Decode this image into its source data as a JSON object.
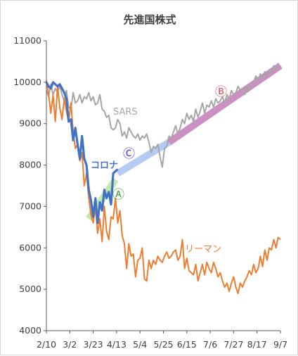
{
  "chart_data": {
    "type": "line",
    "title": "先進国株式",
    "xlabel": "",
    "ylabel": "",
    "ylim": [
      4000,
      11000
    ],
    "yticks": [
      4000,
      5000,
      6000,
      7000,
      8000,
      9000,
      10000,
      11000
    ],
    "x_ticks": [
      {
        "label": "2/10",
        "day": 0
      },
      {
        "label": "3/2",
        "day": 21
      },
      {
        "label": "3/23",
        "day": 42
      },
      {
        "label": "4/13",
        "day": 63
      },
      {
        "label": "5/4",
        "day": 84
      },
      {
        "label": "5/25",
        "day": 105
      },
      {
        "label": "6/15",
        "day": 126
      },
      {
        "label": "7/6",
        "day": 147
      },
      {
        "label": "7/27",
        "day": 168
      },
      {
        "label": "8/17",
        "day": 189
      },
      {
        "label": "9/7",
        "day": 210
      }
    ],
    "grid": false,
    "series": [
      {
        "name": "SARS",
        "color": "#a6a6a6",
        "points": [
          [
            0,
            9800
          ],
          [
            2,
            9650
          ],
          [
            4,
            9950
          ],
          [
            6,
            9700
          ],
          [
            8,
            9850
          ],
          [
            10,
            9750
          ],
          [
            12,
            9920
          ],
          [
            14,
            9700
          ],
          [
            16,
            9550
          ],
          [
            18,
            9800
          ],
          [
            20,
            9400
          ],
          [
            22,
            9350
          ],
          [
            24,
            9750
          ],
          [
            26,
            9500
          ],
          [
            28,
            9550
          ],
          [
            30,
            9700
          ],
          [
            32,
            9500
          ],
          [
            34,
            9650
          ],
          [
            36,
            9600
          ],
          [
            38,
            9750
          ],
          [
            40,
            9550
          ],
          [
            42,
            9650
          ],
          [
            44,
            9450
          ],
          [
            46,
            9500
          ],
          [
            48,
            9700
          ],
          [
            50,
            9350
          ],
          [
            52,
            9300
          ],
          [
            54,
            9150
          ],
          [
            56,
            9200
          ],
          [
            58,
            8900
          ],
          [
            60,
            8850
          ],
          [
            62,
            8900
          ],
          [
            64,
            9100
          ],
          [
            66,
            9000
          ],
          [
            68,
            8700
          ],
          [
            70,
            8800
          ],
          [
            72,
            8650
          ],
          [
            74,
            8900
          ],
          [
            76,
            8800
          ],
          [
            78,
            8700
          ],
          [
            80,
            8650
          ],
          [
            82,
            8750
          ],
          [
            84,
            8600
          ],
          [
            86,
            8700
          ],
          [
            88,
            8650
          ],
          [
            90,
            8750
          ],
          [
            92,
            8550
          ],
          [
            94,
            8300
          ],
          [
            96,
            8450
          ],
          [
            98,
            8400
          ],
          [
            100,
            8500
          ],
          [
            102,
            8200
          ],
          [
            104,
            7950
          ],
          [
            106,
            8400
          ],
          [
            108,
            8450
          ],
          [
            110,
            8700
          ],
          [
            112,
            8650
          ],
          [
            114,
            8800
          ],
          [
            116,
            8950
          ],
          [
            118,
            8750
          ],
          [
            120,
            8900
          ],
          [
            122,
            9100
          ],
          [
            124,
            9000
          ],
          [
            126,
            9250
          ],
          [
            128,
            9100
          ],
          [
            130,
            9200
          ],
          [
            132,
            9050
          ],
          [
            134,
            9350
          ],
          [
            136,
            9150
          ],
          [
            138,
            9300
          ],
          [
            140,
            9500
          ],
          [
            142,
            9250
          ],
          [
            144,
            9450
          ],
          [
            146,
            9400
          ],
          [
            148,
            9550
          ],
          [
            150,
            9400
          ],
          [
            152,
            9600
          ],
          [
            154,
            9500
          ],
          [
            156,
            9550
          ],
          [
            158,
            9650
          ],
          [
            160,
            9500
          ],
          [
            162,
            9700
          ],
          [
            164,
            9600
          ],
          [
            166,
            9800
          ],
          [
            168,
            9700
          ],
          [
            170,
            9750
          ],
          [
            172,
            9900
          ],
          [
            174,
            9800
          ],
          [
            176,
            9850
          ],
          [
            178,
            9700
          ],
          [
            180,
            9900
          ],
          [
            182,
            9800
          ],
          [
            184,
            9950
          ],
          [
            186,
            10000
          ],
          [
            188,
            10150
          ],
          [
            190,
            10050
          ],
          [
            192,
            10200
          ],
          [
            194,
            10100
          ],
          [
            196,
            10250
          ],
          [
            198,
            10150
          ],
          [
            200,
            10300
          ],
          [
            202,
            10200
          ],
          [
            204,
            10400
          ],
          [
            206,
            10300
          ],
          [
            208,
            10350
          ],
          [
            210,
            10400
          ]
        ]
      },
      {
        "name": "リーマン",
        "color": "#ed7d31",
        "points": [
          [
            0,
            10050
          ],
          [
            2,
            9700
          ],
          [
            4,
            9250
          ],
          [
            6,
            9700
          ],
          [
            8,
            9050
          ],
          [
            10,
            9900
          ],
          [
            12,
            9400
          ],
          [
            14,
            9100
          ],
          [
            16,
            9600
          ],
          [
            18,
            9300
          ],
          [
            20,
            9050
          ],
          [
            22,
            9500
          ],
          [
            24,
            8800
          ],
          [
            26,
            8400
          ],
          [
            28,
            8500
          ],
          [
            30,
            8100
          ],
          [
            32,
            8300
          ],
          [
            34,
            7500
          ],
          [
            36,
            7800
          ],
          [
            38,
            7200
          ],
          [
            40,
            6800
          ],
          [
            42,
            6600
          ],
          [
            44,
            7000
          ],
          [
            46,
            6350
          ],
          [
            48,
            6700
          ],
          [
            50,
            6150
          ],
          [
            52,
            7000
          ],
          [
            54,
            6400
          ],
          [
            56,
            6200
          ],
          [
            58,
            6750
          ],
          [
            60,
            6700
          ],
          [
            62,
            7200
          ],
          [
            64,
            6600
          ],
          [
            66,
            6900
          ],
          [
            68,
            6300
          ],
          [
            70,
            6100
          ],
          [
            72,
            5500
          ],
          [
            74,
            6100
          ],
          [
            76,
            5800
          ],
          [
            78,
            5850
          ],
          [
            80,
            5300
          ],
          [
            82,
            5700
          ],
          [
            84,
            5750
          ],
          [
            86,
            6000
          ],
          [
            88,
            5250
          ],
          [
            90,
            5200
          ],
          [
            92,
            5700
          ],
          [
            94,
            5500
          ],
          [
            96,
            5700
          ],
          [
            98,
            5600
          ],
          [
            100,
            5800
          ],
          [
            102,
            5700
          ],
          [
            104,
            5650
          ],
          [
            106,
            5800
          ],
          [
            108,
            5900
          ],
          [
            110,
            5750
          ],
          [
            112,
            5800
          ],
          [
            114,
            5900
          ],
          [
            116,
            5950
          ],
          [
            118,
            5700
          ],
          [
            120,
            5800
          ],
          [
            122,
            6200
          ],
          [
            124,
            5500
          ],
          [
            126,
            5750
          ],
          [
            128,
            5450
          ],
          [
            130,
            5400
          ],
          [
            132,
            5350
          ],
          [
            134,
            5600
          ],
          [
            136,
            5200
          ],
          [
            138,
            5400
          ],
          [
            140,
            5600
          ],
          [
            142,
            5350
          ],
          [
            144,
            5650
          ],
          [
            146,
            5500
          ],
          [
            148,
            5400
          ],
          [
            150,
            5650
          ],
          [
            152,
            5500
          ],
          [
            154,
            5300
          ],
          [
            156,
            5400
          ],
          [
            158,
            5200
          ],
          [
            160,
            5050
          ],
          [
            162,
            5150
          ],
          [
            164,
            4950
          ],
          [
            166,
            5150
          ],
          [
            168,
            5300
          ],
          [
            170,
            5050
          ],
          [
            172,
            4900
          ],
          [
            174,
            5150
          ],
          [
            176,
            5050
          ],
          [
            178,
            5200
          ],
          [
            180,
            5300
          ],
          [
            182,
            5450
          ],
          [
            184,
            5350
          ],
          [
            186,
            5600
          ],
          [
            188,
            5400
          ],
          [
            190,
            5500
          ],
          [
            192,
            5800
          ],
          [
            194,
            5550
          ],
          [
            196,
            5950
          ],
          [
            198,
            5700
          ],
          [
            200,
            6000
          ],
          [
            202,
            5950
          ],
          [
            204,
            6200
          ],
          [
            206,
            6000
          ],
          [
            208,
            6250
          ],
          [
            210,
            6200
          ]
        ]
      },
      {
        "name": "コロナ",
        "color": "#4472c4",
        "points": [
          [
            0,
            10000
          ],
          [
            2,
            9900
          ],
          [
            4,
            9850
          ],
          [
            6,
            10000
          ],
          [
            8,
            9950
          ],
          [
            10,
            9900
          ],
          [
            12,
            9950
          ],
          [
            14,
            9850
          ],
          [
            16,
            9750
          ],
          [
            18,
            9600
          ],
          [
            20,
            9050
          ],
          [
            22,
            9100
          ],
          [
            24,
            8600
          ],
          [
            26,
            8900
          ],
          [
            28,
            8500
          ],
          [
            30,
            8150
          ],
          [
            32,
            8700
          ],
          [
            34,
            8150
          ],
          [
            36,
            8000
          ],
          [
            38,
            7400
          ],
          [
            40,
            7150
          ],
          [
            42,
            6750
          ],
          [
            44,
            7200
          ],
          [
            46,
            6600
          ],
          [
            48,
            7100
          ],
          [
            50,
            6900
          ],
          [
            52,
            7400
          ],
          [
            54,
            7200
          ],
          [
            56,
            7350
          ],
          [
            58,
            7050
          ],
          [
            60,
            7800
          ],
          [
            62,
            7850
          ],
          [
            64,
            7900
          ]
        ]
      }
    ],
    "trend_bands": [
      {
        "label": "Ⓐ",
        "color": "#b4e8a2",
        "from": [
          38,
          6700
        ],
        "to": [
          62,
          7650
        ]
      },
      {
        "label": "Ⓒ",
        "color": "#a9c2f2",
        "from": [
          64,
          7800
        ],
        "to": [
          110,
          8550
        ]
      },
      {
        "label": "Ⓑ",
        "color": "#c37bb6",
        "from": [
          110,
          8550
        ],
        "to": [
          210,
          10400
        ]
      }
    ],
    "annotations": [
      {
        "text": "SARS",
        "color": "#a6a6a6"
      },
      {
        "text": "コロナ",
        "color": "#4472c4"
      },
      {
        "text": "リーマン",
        "color": "#ed7d31"
      },
      {
        "text": "Ⓐ",
        "color": "#2e9e2e"
      },
      {
        "text": "Ⓑ",
        "color": "#e0485a"
      },
      {
        "text": "Ⓒ",
        "color": "#3a3ae8"
      }
    ]
  }
}
